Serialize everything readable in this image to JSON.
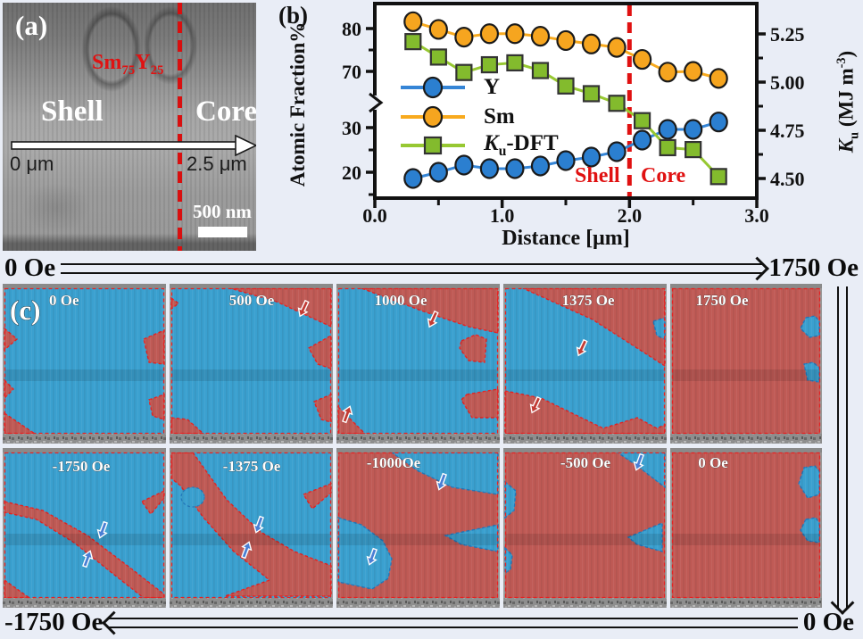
{
  "panel_a": {
    "label": "(a)",
    "composition": {
      "el1": "Sm",
      "sub1": "75",
      "el2": "Y",
      "sub2": "25"
    },
    "region_left": "Shell",
    "region_right": "Core",
    "arrow_start": "0 μm",
    "arrow_end": "2.5 μm",
    "scale_bar": "500 nm"
  },
  "panel_b": {
    "label": "(b)",
    "left_axis_label": "Atomic Fraction%",
    "right_axis": {
      "k": "K",
      "u": "u",
      "mid": " (MJ m",
      "sup": "-3",
      "close": ")"
    },
    "x_axis_label": "Distance [μm]",
    "zone_left": "Shell",
    "zone_right": "Core",
    "legend": [
      {
        "label": "Y"
      },
      {
        "label": "Sm"
      },
      {
        "k": "K",
        "sub": "u",
        "rest": "-DFT"
      }
    ],
    "chart_data": {
      "type": "line",
      "title": "",
      "xlabel": "Distance [μm]",
      "ylabel_left": "Atomic Fraction%",
      "ylabel_right": "Ku (MJ m-3)",
      "xlim": [
        0,
        3
      ],
      "axis_break_between": [
        30,
        70
      ],
      "dashed_line_x": 2.0,
      "legend_position": "middle-left",
      "grid": false,
      "x": [
        0.3,
        0.5,
        0.7,
        0.9,
        1.1,
        1.3,
        1.5,
        1.7,
        1.9,
        2.1,
        2.3,
        2.5,
        2.7
      ],
      "series": [
        {
          "name": "Y",
          "axis": "left",
          "marker": "circle",
          "color": "#2b7fd0",
          "line_color": "#3585d6",
          "values": [
            18.6,
            20.0,
            21.6,
            20.8,
            20.8,
            21.4,
            22.6,
            23.4,
            24.6,
            27.2,
            29.6,
            29.6,
            34.0
          ]
        },
        {
          "name": "Sm",
          "axis": "left",
          "marker": "circle",
          "color": "#f6a51f",
          "line_color": "#f8aa1e",
          "values": [
            81.6,
            79.8,
            78.0,
            78.8,
            78.8,
            78.2,
            77.2,
            76.4,
            75.6,
            72.8,
            69.5,
            70.0,
            65.0
          ]
        },
        {
          "name": "Ku-DFT",
          "axis": "right",
          "marker": "square",
          "color": "#83bb2d",
          "line_color": "#97c832",
          "values": [
            5.21,
            5.13,
            5.05,
            5.09,
            5.1,
            5.06,
            4.98,
            4.94,
            4.89,
            4.8,
            4.66,
            4.65,
            4.51
          ]
        }
      ],
      "x_ticks": [
        "0.0",
        "1.0",
        "2.0",
        "3.0"
      ],
      "x_tick_values": [
        0,
        1,
        2,
        3
      ],
      "x_minor_values": [
        0.5,
        1.5,
        2.5
      ],
      "left_ticks": [
        "80",
        "70",
        "30",
        "20"
      ],
      "left_tick_values": [
        80,
        70,
        30,
        20
      ],
      "left_minor_values": [
        75,
        25,
        15
      ],
      "right_ticks": [
        "5.25",
        "5.00",
        "4.75",
        "4.50"
      ],
      "right_tick_values": [
        5.25,
        5.0,
        4.75,
        4.5
      ],
      "right_minor_values": [
        5.125,
        4.875,
        4.625
      ]
    }
  },
  "panel_c": {
    "label": "(c)",
    "top_arrow": {
      "from": "0 Oe",
      "to": "1750 Oe"
    },
    "bottom_arrow": {
      "from": "-1750 Oe",
      "to": "0 Oe"
    },
    "colors": {
      "up_domain": "#bf5a55",
      "down_domain": "#3aa0cf",
      "outline": "#e62222"
    },
    "cells": [
      {
        "label": "0 Oe"
      },
      {
        "label": "500 Oe"
      },
      {
        "label": "1000 Oe"
      },
      {
        "label": "1375 Oe"
      },
      {
        "label": "1750 Oe"
      },
      {
        "label": "-1750 Oe"
      },
      {
        "label": "-1375 Oe"
      },
      {
        "label": "-1000Oe"
      },
      {
        "label": "-500 Oe"
      },
      {
        "label": "0 Oe"
      }
    ]
  }
}
